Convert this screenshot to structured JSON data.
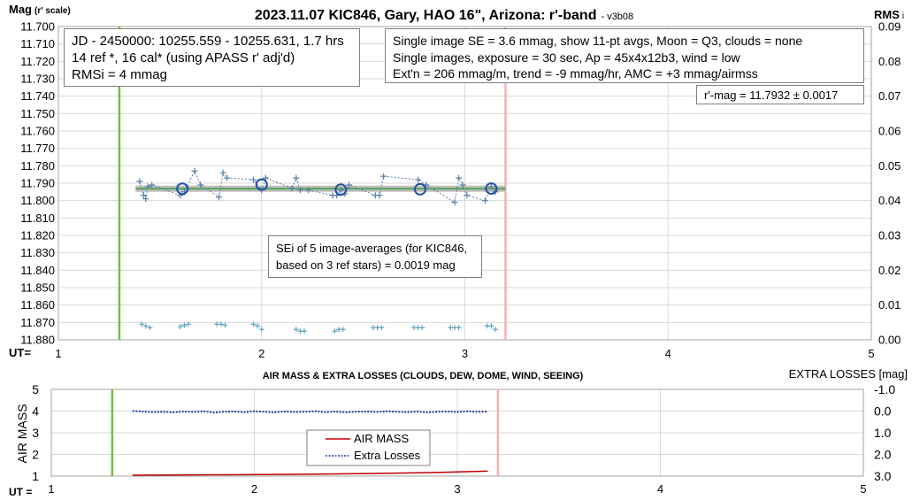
{
  "chart_data": [
    {
      "type": "scatter",
      "title": "2023.11.07 KIC846, Gary, HAO 16\", Arizona: r'-band",
      "version": "- v3b08",
      "ylabel": "Mag",
      "ylabel_note": "(r' scale)",
      "y2label": "RMS",
      "y2label_note": "i",
      "xlabel": "UT=",
      "xlim": [
        1,
        5
      ],
      "ylim": [
        11.7,
        11.88
      ],
      "y_reversed": true,
      "y2lim": [
        0.0,
        0.09
      ],
      "x_ticks": [
        "1",
        "2",
        "3",
        "4",
        "5"
      ],
      "y_ticks": [
        "11.700",
        "11.710",
        "11.720",
        "11.730",
        "11.740",
        "11.750",
        "11.760",
        "11.770",
        "11.780",
        "11.790",
        "11.800",
        "11.810",
        "11.820",
        "11.830",
        "11.840",
        "11.850",
        "11.860",
        "11.870",
        "11.880"
      ],
      "y2_ticks": [
        "0.00",
        "0.01",
        "0.02",
        "0.03",
        "0.04",
        "0.05",
        "0.06",
        "0.07",
        "0.08",
        "0.09"
      ],
      "grid": true,
      "vlines": [
        {
          "x": 1.3,
          "color": "#70c040"
        },
        {
          "x": 3.2,
          "color": "#f4b3b3"
        }
      ],
      "mean_mag": 11.7932,
      "mean_line": {
        "x": [
          1.38,
          3.2
        ],
        "y": 11.7932,
        "color": "#5aa05a",
        "band_color": "#bfbfbf"
      },
      "series": [
        {
          "marker": "plus",
          "color": "#5a7fa8",
          "line": "dotted",
          "x": [
            1.4,
            1.42,
            1.43,
            1.44,
            1.46,
            1.6,
            1.62,
            1.67,
            1.7,
            1.79,
            1.81,
            1.83,
            1.96,
            2.0,
            2.02,
            2.15,
            2.17,
            2.19,
            2.23,
            2.35,
            2.37,
            2.39,
            2.41,
            2.43,
            2.56,
            2.58,
            2.6,
            2.77,
            2.81,
            2.95,
            2.97,
            2.99,
            3.01,
            3.1,
            3.13,
            3.15
          ],
          "y": [
            11.789,
            11.797,
            11.799,
            11.792,
            11.791,
            11.797,
            11.795,
            11.783,
            11.791,
            11.798,
            11.784,
            11.787,
            11.788,
            11.794,
            11.787,
            11.793,
            11.787,
            11.794,
            11.794,
            11.797,
            11.797,
            11.794,
            11.796,
            11.791,
            11.797,
            11.797,
            11.786,
            11.788,
            11.791,
            11.801,
            11.787,
            11.791,
            11.797,
            11.8,
            11.792,
            11.795
          ]
        },
        {
          "marker": "circle",
          "name": "image averages",
          "color": "#1f4fa8",
          "x": [
            1.61,
            2.0,
            2.39,
            2.78,
            3.13
          ],
          "y": [
            11.7932,
            11.7908,
            11.7937,
            11.7935,
            11.7931
          ]
        },
        {
          "marker": "plus",
          "name": "RMSi",
          "axis": "y2",
          "color": "#5aa0b8",
          "x": [
            1.41,
            1.43,
            1.45,
            1.6,
            1.62,
            1.64,
            1.78,
            1.8,
            1.82,
            1.96,
            1.98,
            2.0,
            2.17,
            2.19,
            2.21,
            2.36,
            2.38,
            2.4,
            2.55,
            2.57,
            2.59,
            2.75,
            2.77,
            2.79,
            2.93,
            2.95,
            2.97,
            3.11,
            3.13,
            3.15
          ],
          "y": [
            0.0045,
            0.004,
            0.0035,
            0.0038,
            0.0042,
            0.0045,
            0.0045,
            0.0045,
            0.0042,
            0.0045,
            0.004,
            0.003,
            0.003,
            0.0025,
            0.0025,
            0.0025,
            0.003,
            0.003,
            0.0035,
            0.0035,
            0.0035,
            0.0035,
            0.0035,
            0.0035,
            0.0035,
            0.0035,
            0.0035,
            0.004,
            0.004,
            0.003
          ]
        }
      ],
      "info_left": [
        "JD - 2450000: 10255.559 - 10255.631, 1.7 hrs",
        "14 ref *, 16 cal* (using APASS r' adj'd)",
        "RMSi = 4 mmag"
      ],
      "info_right": [
        "Single image SE = 3.6 mmag, show  11-pt avgs, Moon = Q3, clouds = none",
        "Single images, exposure = 30 sec, Ap = 45x4x12b3, wind = low",
        "Ext'n = 206 mmag/m, trend = -9  mmag/hr, AMC = +3 mmag/airmss"
      ],
      "result": "r'-mag = 11.7932 ± 0.0017",
      "sei_note": [
        "SEi of 5 image-averages (for KIC846,",
        "based on 3 ref stars) = 0.0019 mag"
      ]
    },
    {
      "type": "line",
      "title": "AIR MASS & EXTRA LOSSES (CLOUDS, DEW, DOME, WIND, SEEING)",
      "ylabel": "AIR MASS",
      "y2label": "EXTRA LOSSES [mag]",
      "xlabel": "UT =",
      "xlim": [
        1,
        5
      ],
      "ylim": [
        1,
        5
      ],
      "y2lim": [
        3.0,
        -1.0
      ],
      "x_ticks": [
        "1",
        "2",
        "3",
        "4",
        "5"
      ],
      "y_ticks": [
        "1",
        "2",
        "3",
        "4",
        "5"
      ],
      "y2_ticks": [
        "3.0",
        "2.0",
        "1.0",
        "0.0",
        "-1.0"
      ],
      "grid": true,
      "vlines": [
        {
          "x": 1.3,
          "color": "#70c040"
        },
        {
          "x": 3.2,
          "color": "#f4b3b3"
        }
      ],
      "legend": [
        "AIR MASS",
        "Extra Losses"
      ],
      "legend_position": "bottom-center",
      "series": [
        {
          "name": "AIR MASS",
          "color": "#c00000",
          "line": "solid",
          "x": [
            1.4,
            1.8,
            2.2,
            2.6,
            2.9,
            3.15
          ],
          "y": [
            1.04,
            1.06,
            1.08,
            1.12,
            1.17,
            1.23
          ]
        },
        {
          "name": "Extra Losses",
          "axis": "y2",
          "color": "#1f3fa8",
          "line": "dotted",
          "x": [
            1.4,
            1.45,
            1.5,
            1.55,
            1.6,
            1.65,
            1.7,
            1.75,
            1.8,
            1.85,
            1.9,
            1.95,
            2.0,
            2.05,
            2.1,
            2.15,
            2.2,
            2.25,
            2.3,
            2.35,
            2.4,
            2.45,
            2.5,
            2.55,
            2.6,
            2.65,
            2.7,
            2.75,
            2.8,
            2.85,
            2.9,
            2.95,
            3.0,
            3.05,
            3.1,
            3.15
          ],
          "y": [
            0.0,
            0.02,
            0.05,
            0.03,
            0.06,
            0.02,
            0.04,
            0.01,
            0.07,
            0.03,
            0.02,
            0.05,
            0.01,
            0.03,
            0.06,
            0.02,
            0.04,
            0.03,
            0.01,
            0.05,
            0.02,
            0.06,
            0.03,
            0.02,
            0.04,
            0.01,
            0.03,
            0.05,
            0.02,
            0.06,
            0.03,
            0.02,
            0.04,
            0.01,
            0.03,
            0.02
          ]
        }
      ]
    }
  ]
}
